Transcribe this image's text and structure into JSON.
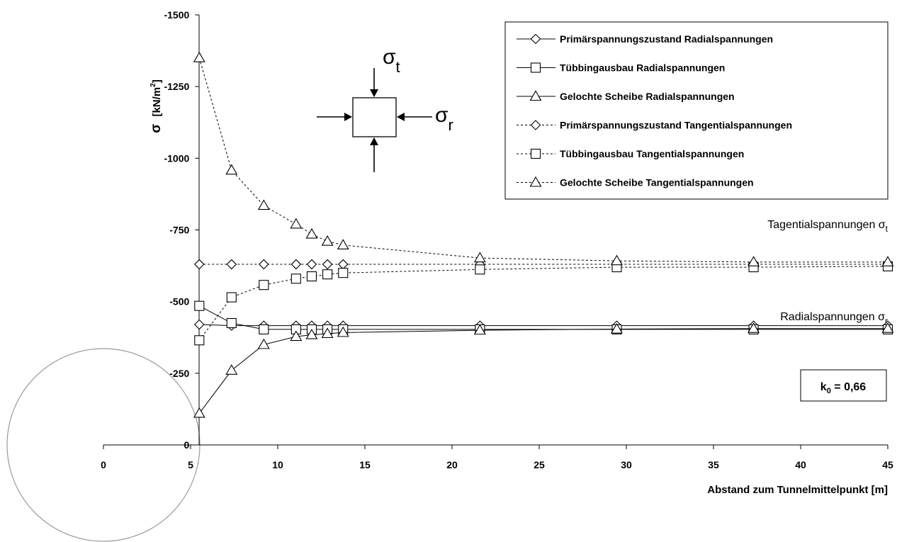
{
  "chart_data": {
    "type": "line",
    "xlabel": "Abstand zum Tunnelmittelpunkt [m]",
    "ylabel_symbol": "σ",
    "ylabel_unit": "[kN/m",
    "ylabel_unit_sup": "2",
    "ylabel_unit_close": "]",
    "xlim": [
      -5.5,
      45
    ],
    "ylim": [
      0,
      -1500
    ],
    "y_reversed": true,
    "x_ticks": [
      "0",
      "5",
      "10",
      "15",
      "20",
      "25",
      "30",
      "35",
      "40",
      "45"
    ],
    "x_tick_values": [
      0,
      5,
      10,
      15,
      20,
      25,
      30,
      35,
      40,
      45
    ],
    "y_ticks": [
      "0",
      "-250",
      "-500",
      "-750",
      "-1000",
      "-1250",
      "-1500"
    ],
    "y_tick_values": [
      0,
      -250,
      -500,
      -750,
      -1000,
      -1250,
      -1500
    ],
    "grid": false,
    "legend_position": "top-right",
    "series": [
      {
        "name": "Primärspannungszustand Radialspannungen",
        "marker": "diamond",
        "dash": "solid",
        "x": [
          5.5,
          7.35,
          9.2,
          11.05,
          11.95,
          12.85,
          13.75,
          21.6,
          29.45,
          37.3,
          45
        ],
        "y": [
          -420,
          -416,
          -416,
          -416,
          -416,
          -416,
          -416,
          -416,
          -416,
          -416,
          -416
        ]
      },
      {
        "name": "Tübbingausbau Radialspannungen",
        "marker": "square",
        "dash": "solid",
        "x": [
          5.5,
          7.35,
          9.2,
          11.05,
          11.95,
          12.85,
          13.75,
          21.6,
          29.45,
          37.3,
          45
        ],
        "y": [
          -485,
          -425,
          -403,
          -403,
          -403,
          -403,
          -403,
          -403,
          -403,
          -403,
          -403
        ]
      },
      {
        "name": "Gelochte Scheibe Radialspannungen",
        "marker": "triangle",
        "dash": "solid",
        "x": [
          5.5,
          7.35,
          9.2,
          11.05,
          11.95,
          12.85,
          13.75,
          21.6,
          29.45,
          37.3,
          45
        ],
        "y": [
          -110,
          -260,
          -350,
          -378,
          -384,
          -388,
          -392,
          -400,
          -404,
          -406,
          -406
        ]
      },
      {
        "name": "Primärspannungszustand Tangentialspannungen",
        "marker": "diamond",
        "dash": "dashed",
        "x": [
          5.5,
          7.35,
          9.2,
          11.05,
          11.95,
          12.85,
          13.75,
          21.6,
          29.45,
          37.3,
          45
        ],
        "y": [
          -630,
          -630,
          -630,
          -630,
          -630,
          -630,
          -630,
          -630,
          -630,
          -630,
          -630
        ]
      },
      {
        "name": "Tübbingausbau Tangentialspannungen",
        "marker": "square",
        "dash": "dashed",
        "x": [
          5.5,
          7.35,
          9.2,
          11.05,
          11.95,
          12.85,
          13.75,
          21.6,
          29.45,
          37.3,
          45
        ],
        "y": [
          -365,
          -515,
          -558,
          -580,
          -588,
          -595,
          -600,
          -612,
          -620,
          -620,
          -623
        ]
      },
      {
        "name": "Gelochte Scheibe Tangentialspannungen",
        "marker": "triangle",
        "dash": "dashed",
        "x": [
          5.5,
          7.35,
          9.2,
          11.05,
          11.95,
          12.85,
          13.75,
          21.6,
          29.45,
          37.3,
          45
        ],
        "y": [
          -1350,
          -958,
          -835,
          -770,
          -735,
          -710,
          -697,
          -652,
          -642,
          -638,
          -638
        ]
      }
    ],
    "annotations": {
      "tangential": {
        "text": "Tagentialspannungen σ",
        "sub": "t"
      },
      "radial": {
        "text": "Radialspannungen σ",
        "sub": "r"
      },
      "k0": {
        "text": "k",
        "sub": "0",
        "rest": " = 0,66"
      }
    },
    "inset": {
      "sigma_t": {
        "symbol": "σ",
        "sub": "t"
      },
      "sigma_r": {
        "symbol": "σ",
        "sub": "r"
      }
    }
  }
}
